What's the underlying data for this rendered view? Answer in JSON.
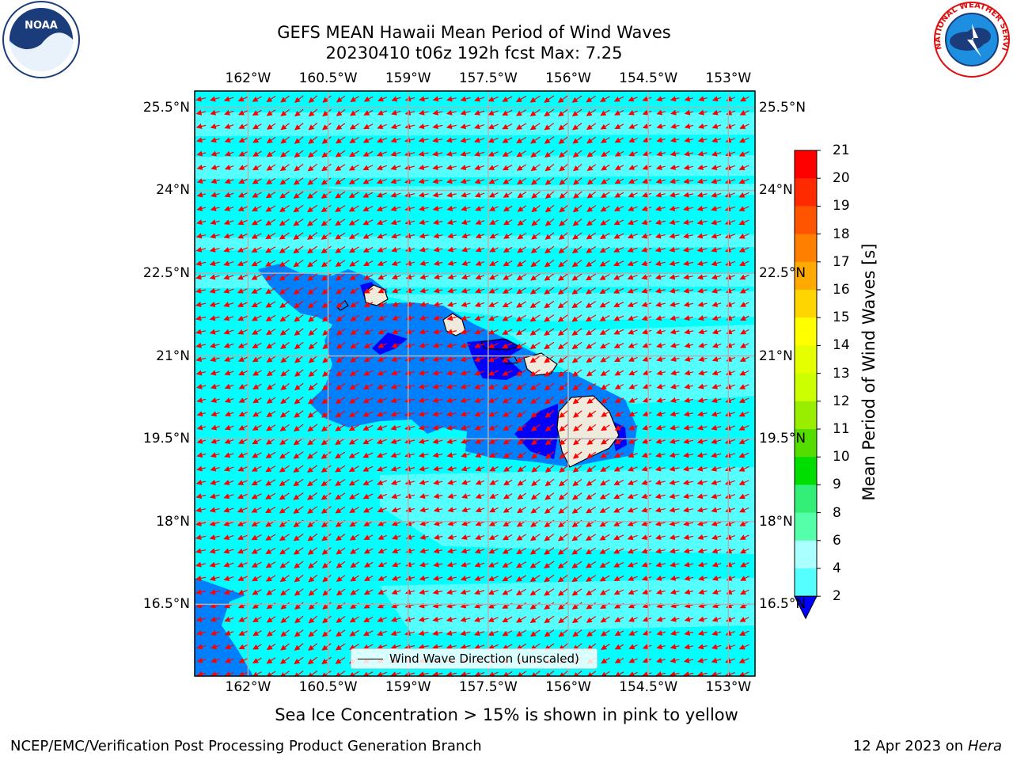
{
  "title": {
    "line1": "GEFS MEAN Hawaii Mean Period of Wind Waves",
    "line2": "20230410 t06z 192h fcst   Max: 7.25"
  },
  "logos": {
    "noaa_text": "NOAA",
    "nws_text": "NATIONAL WEATHER SERVICE"
  },
  "map": {
    "x_ticks": [
      "162°W",
      "160.5°W",
      "159°W",
      "157.5°W",
      "156°W",
      "154.5°W",
      "153°W"
    ],
    "x_tick_values": [
      -162,
      -160.5,
      -159,
      -157.5,
      -156,
      -154.5,
      -153
    ],
    "y_ticks": [
      "25.5°N",
      "24°N",
      "22.5°N",
      "21°N",
      "19.5°N",
      "18°N",
      "16.5°N"
    ],
    "y_tick_values": [
      25.5,
      24,
      22.5,
      21,
      19.5,
      18,
      16.5
    ],
    "lon_range": [
      -163,
      -152.5
    ],
    "lat_range": [
      15.2,
      25.8
    ],
    "grid": true,
    "vector_color": "#ff0000",
    "legend_label": "Wind Wave Direction (unscaled)"
  },
  "colorbar": {
    "label": "Mean Period of Wind Waves [s]",
    "ticks": [
      "21",
      "20",
      "19",
      "18",
      "17",
      "16",
      "15",
      "14",
      "13",
      "12",
      "11",
      "10",
      "9",
      "8",
      "6",
      "4",
      "2"
    ],
    "colors": [
      "#ff0000",
      "#ff2a00",
      "#ff5500",
      "#ff8000",
      "#ffaa00",
      "#ffd500",
      "#ffff00",
      "#e5ff00",
      "#ccff00",
      "#99ee00",
      "#55dd00",
      "#00dd00",
      "#33ee77",
      "#55ffaa",
      "#aaffff",
      "#55ffff",
      "#00ffff",
      "#0080ff",
      "#0000ff"
    ],
    "ocean_main": "#00ffff",
    "ocean_light": "#55ffff",
    "ocean_blue": "#0080ff",
    "ocean_dark": "#0000ff",
    "land": "#efebdc"
  },
  "subtitle": "Sea Ice Concentration > 15% is shown in pink to yellow",
  "footer": {
    "left": "NCEP/EMC/Verification Post Processing Product Generation Branch",
    "right_date": "12 Apr 2023 on ",
    "right_host": "Hera"
  }
}
